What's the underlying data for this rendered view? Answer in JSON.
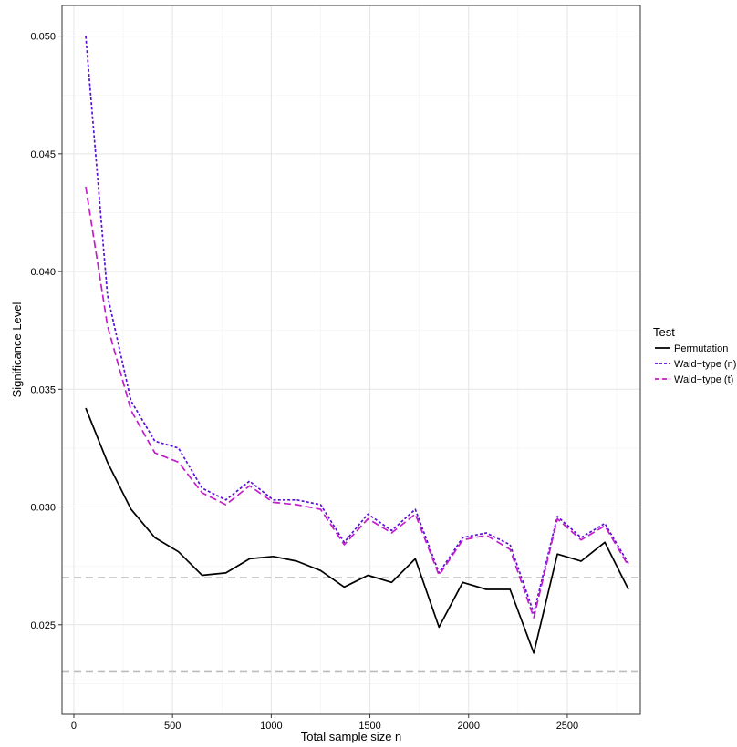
{
  "chart_data": {
    "type": "line",
    "xlabel": "Total sample size n",
    "ylabel": "Significance Level",
    "xlim": [
      -60,
      2870
    ],
    "ylim": [
      0.0212,
      0.0513
    ],
    "x_ticks": [
      0,
      500,
      1000,
      1500,
      2000,
      2500
    ],
    "x_tick_labels": [
      "0",
      "500",
      "1000",
      "1500",
      "2000",
      "2500"
    ],
    "y_ticks": [
      0.025,
      0.03,
      0.035,
      0.04,
      0.045,
      0.05
    ],
    "y_tick_labels": [
      "0.025",
      "0.030",
      "0.035",
      "0.040",
      "0.045",
      "0.050"
    ],
    "grid": true,
    "reference_lines": [
      0.027,
      0.023
    ],
    "legend": {
      "title": "Test",
      "position": "right"
    },
    "x": [
      60,
      170,
      290,
      410,
      530,
      650,
      770,
      890,
      1010,
      1130,
      1250,
      1370,
      1490,
      1610,
      1730,
      1850,
      1970,
      2090,
      2210,
      2330,
      2450,
      2570,
      2690,
      2810
    ],
    "series": [
      {
        "name": "Permutation",
        "color": "#000000",
        "dash": "solid",
        "values": [
          0.0342,
          0.0319,
          0.0299,
          0.0287,
          0.0281,
          0.0271,
          0.0272,
          0.0278,
          0.0279,
          0.0277,
          0.0273,
          0.0266,
          0.0271,
          0.0268,
          0.0278,
          0.0249,
          0.0268,
          0.0265,
          0.0265,
          0.0238,
          0.028,
          0.0277,
          0.0285,
          0.0265
        ]
      },
      {
        "name": "Wald−type (n)",
        "color": "#5a0fd8",
        "dash": "dotted",
        "values": [
          0.05,
          0.039,
          0.0345,
          0.0328,
          0.0325,
          0.0308,
          0.0303,
          0.0311,
          0.0303,
          0.0303,
          0.0301,
          0.0285,
          0.0297,
          0.029,
          0.0299,
          0.0272,
          0.0287,
          0.0289,
          0.0284,
          0.0255,
          0.0296,
          0.0287,
          0.0293,
          0.0276
        ]
      },
      {
        "name": "Wald−type (t)",
        "color": "#c21dc8",
        "dash": "dashed",
        "values": [
          0.0436,
          0.0377,
          0.0341,
          0.0323,
          0.0319,
          0.0306,
          0.0301,
          0.0309,
          0.0302,
          0.0301,
          0.0299,
          0.0284,
          0.0295,
          0.0289,
          0.0297,
          0.0271,
          0.0286,
          0.0288,
          0.0282,
          0.0253,
          0.0295,
          0.0286,
          0.0292,
          0.0275
        ]
      }
    ]
  }
}
